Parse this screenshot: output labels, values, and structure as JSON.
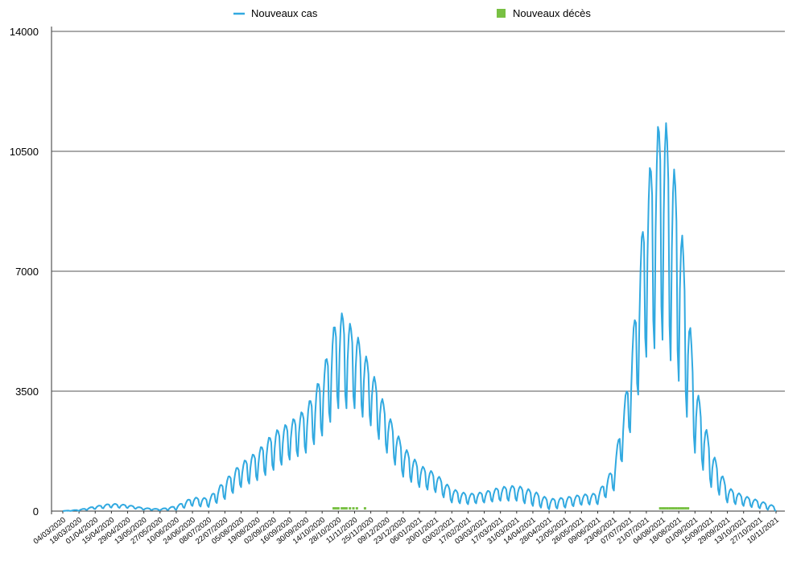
{
  "chart_data": {
    "type": "line",
    "title": "",
    "xlabel": "",
    "ylabel": "",
    "ylim": [
      0,
      14000
    ],
    "yticks": [
      "0",
      "3500",
      "7000",
      "10500",
      "14000"
    ],
    "ytick_values": [
      0,
      3500,
      7000,
      10500,
      14000
    ],
    "grid": "horizontal",
    "legend_position": "top",
    "x_tick_labels": [
      "04/03/2020",
      "18/03/2020",
      "01/04/2020",
      "15/04/2020",
      "29/04/2020",
      "13/05/2020",
      "27/05/2020",
      "10/06/2020",
      "24/06/2020",
      "08/07/2020",
      "22/07/2020",
      "05/08/2020",
      "19/08/2020",
      "02/09/2020",
      "16/09/2020",
      "30/09/2020",
      "14/10/2020",
      "28/10/2020",
      "11/11/2020",
      "25/11/2020",
      "09/12/2020",
      "23/12/2020",
      "06/01/2021",
      "20/01/2021",
      "03/02/2021",
      "17/02/2021",
      "03/03/2021",
      "17/03/2021",
      "31/03/2021",
      "14/04/2021",
      "28/04/2021",
      "12/05/2021",
      "26/05/2021",
      "09/06/2021",
      "23/06/2021",
      "07/07/2021",
      "21/07/2021",
      "04/08/2021",
      "18/08/2021",
      "01/09/2021",
      "15/09/2021",
      "29/09/2021",
      "13/10/2021",
      "27/10/2021",
      "10/11/2021"
    ],
    "series": [
      {
        "name": "Nouveaux cas",
        "color": "#31a9e0",
        "kind": "line",
        "note_weekly_oscillation": true,
        "x": [
          "04/03/2020",
          "18/03/2020",
          "01/04/2020",
          "15/04/2020",
          "29/04/2020",
          "13/05/2020",
          "27/05/2020",
          "10/06/2020",
          "24/06/2020",
          "08/07/2020",
          "22/07/2020",
          "05/08/2020",
          "19/08/2020",
          "02/09/2020",
          "16/09/2020",
          "30/09/2020",
          "14/10/2020",
          "28/10/2020",
          "11/11/2020",
          "25/11/2020",
          "09/12/2020",
          "23/12/2020",
          "06/01/2021",
          "20/01/2021",
          "03/02/2021",
          "17/02/2021",
          "03/03/2021",
          "17/03/2021",
          "31/03/2021",
          "14/04/2021",
          "28/04/2021",
          "12/05/2021",
          "26/05/2021",
          "09/06/2021",
          "23/06/2021",
          "07/07/2021",
          "21/07/2021",
          "04/08/2021",
          "18/08/2021",
          "01/09/2021",
          "15/09/2021",
          "29/09/2021",
          "13/10/2021",
          "27/10/2021",
          "10/11/2021"
        ],
        "peaks": [
          5,
          40,
          140,
          220,
          180,
          90,
          60,
          150,
          400,
          380,
          900,
          1400,
          1750,
          2300,
          2600,
          3000,
          4000,
          5900,
          5300,
          4200,
          2900,
          1900,
          1350,
          1100,
          650,
          500,
          560,
          700,
          750,
          600,
          350,
          400,
          480,
          520,
          1300,
          4200,
          9500,
          11900,
          9200,
          3800,
          1800,
          700,
          450,
          300,
          130
        ],
        "troughs": [
          0,
          10,
          60,
          100,
          90,
          40,
          20,
          40,
          150,
          120,
          350,
          700,
          900,
          1200,
          1500,
          1700,
          2200,
          3000,
          3000,
          2500,
          1700,
          1000,
          700,
          550,
          250,
          200,
          250,
          300,
          300,
          150,
          50,
          100,
          180,
          200,
          600,
          2300,
          4500,
          5000,
          3800,
          1700,
          700,
          250,
          150,
          80,
          0
        ]
      },
      {
        "name": "Nouveaux décès",
        "color": "#78c043",
        "kind": "markers",
        "dates": [
          "24/10/2020",
          "26/10/2020",
          "28/10/2020",
          "31/10/2020",
          "02/11/2020",
          "04/11/2020",
          "07/11/2020",
          "10/11/2020",
          "13/11/2020",
          "20/11/2020",
          "02/08/2021",
          "04/08/2021",
          "06/08/2021",
          "08/08/2021",
          "10/08/2021",
          "12/08/2021",
          "14/08/2021",
          "16/08/2021",
          "18/08/2021",
          "20/08/2021",
          "22/08/2021",
          "24/08/2021",
          "26/08/2021"
        ],
        "values": [
          80,
          80,
          80,
          80,
          80,
          80,
          80,
          80,
          80,
          80,
          80,
          80,
          80,
          80,
          80,
          80,
          80,
          80,
          80,
          80,
          80,
          80,
          80
        ]
      }
    ]
  }
}
